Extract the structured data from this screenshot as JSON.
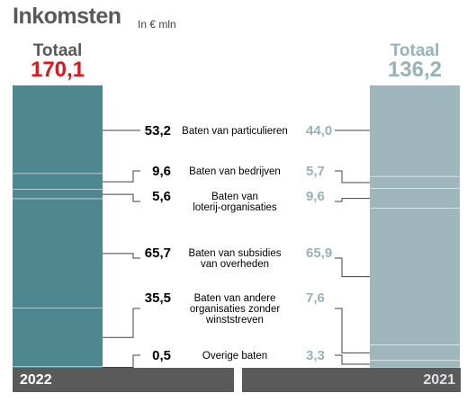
{
  "header": {
    "title": "Inkomsten",
    "unit": "In € mln"
  },
  "totals": {
    "left": {
      "label": "Totaal",
      "value": "170,1",
      "year": "2022"
    },
    "right": {
      "label": "Totaal",
      "value": "136,2",
      "year": "2021"
    }
  },
  "colors": {
    "left_bar": "#4e8790",
    "right_bar": "#9fb7bc",
    "left_total": "#d7191c",
    "right_text": "#95b3b9",
    "year_bar": "#5a5a5a"
  },
  "chart_data": {
    "type": "bar",
    "subtype": "stacked-comparison",
    "title": "Inkomsten",
    "subtitle": "In € mln",
    "categories": [
      [
        "Baten van particulieren"
      ],
      [
        "Baten van bedrijven"
      ],
      [
        "Baten van",
        "loterij-organisaties"
      ],
      [
        "Baten van subsidies",
        "van overheden"
      ],
      [
        "Baten van andere",
        "organisaties zonder",
        "winststreven"
      ],
      [
        "Overige baten"
      ]
    ],
    "series": [
      {
        "name": "2022",
        "values": [
          53.2,
          9.6,
          5.6,
          65.7,
          35.5,
          0.5
        ],
        "labels": [
          "53,2",
          "9,6",
          "5,6",
          "65,7",
          "35,5",
          "0,5"
        ],
        "total": 170.1
      },
      {
        "name": "2021",
        "values": [
          44.0,
          5.7,
          9.6,
          65.9,
          7.6,
          3.3
        ],
        "labels": [
          "44,0",
          "5,7",
          "9,6",
          "65,9",
          "7,6",
          "3,3"
        ],
        "total": 136.2
      }
    ],
    "grid": false,
    "legend": "none"
  }
}
